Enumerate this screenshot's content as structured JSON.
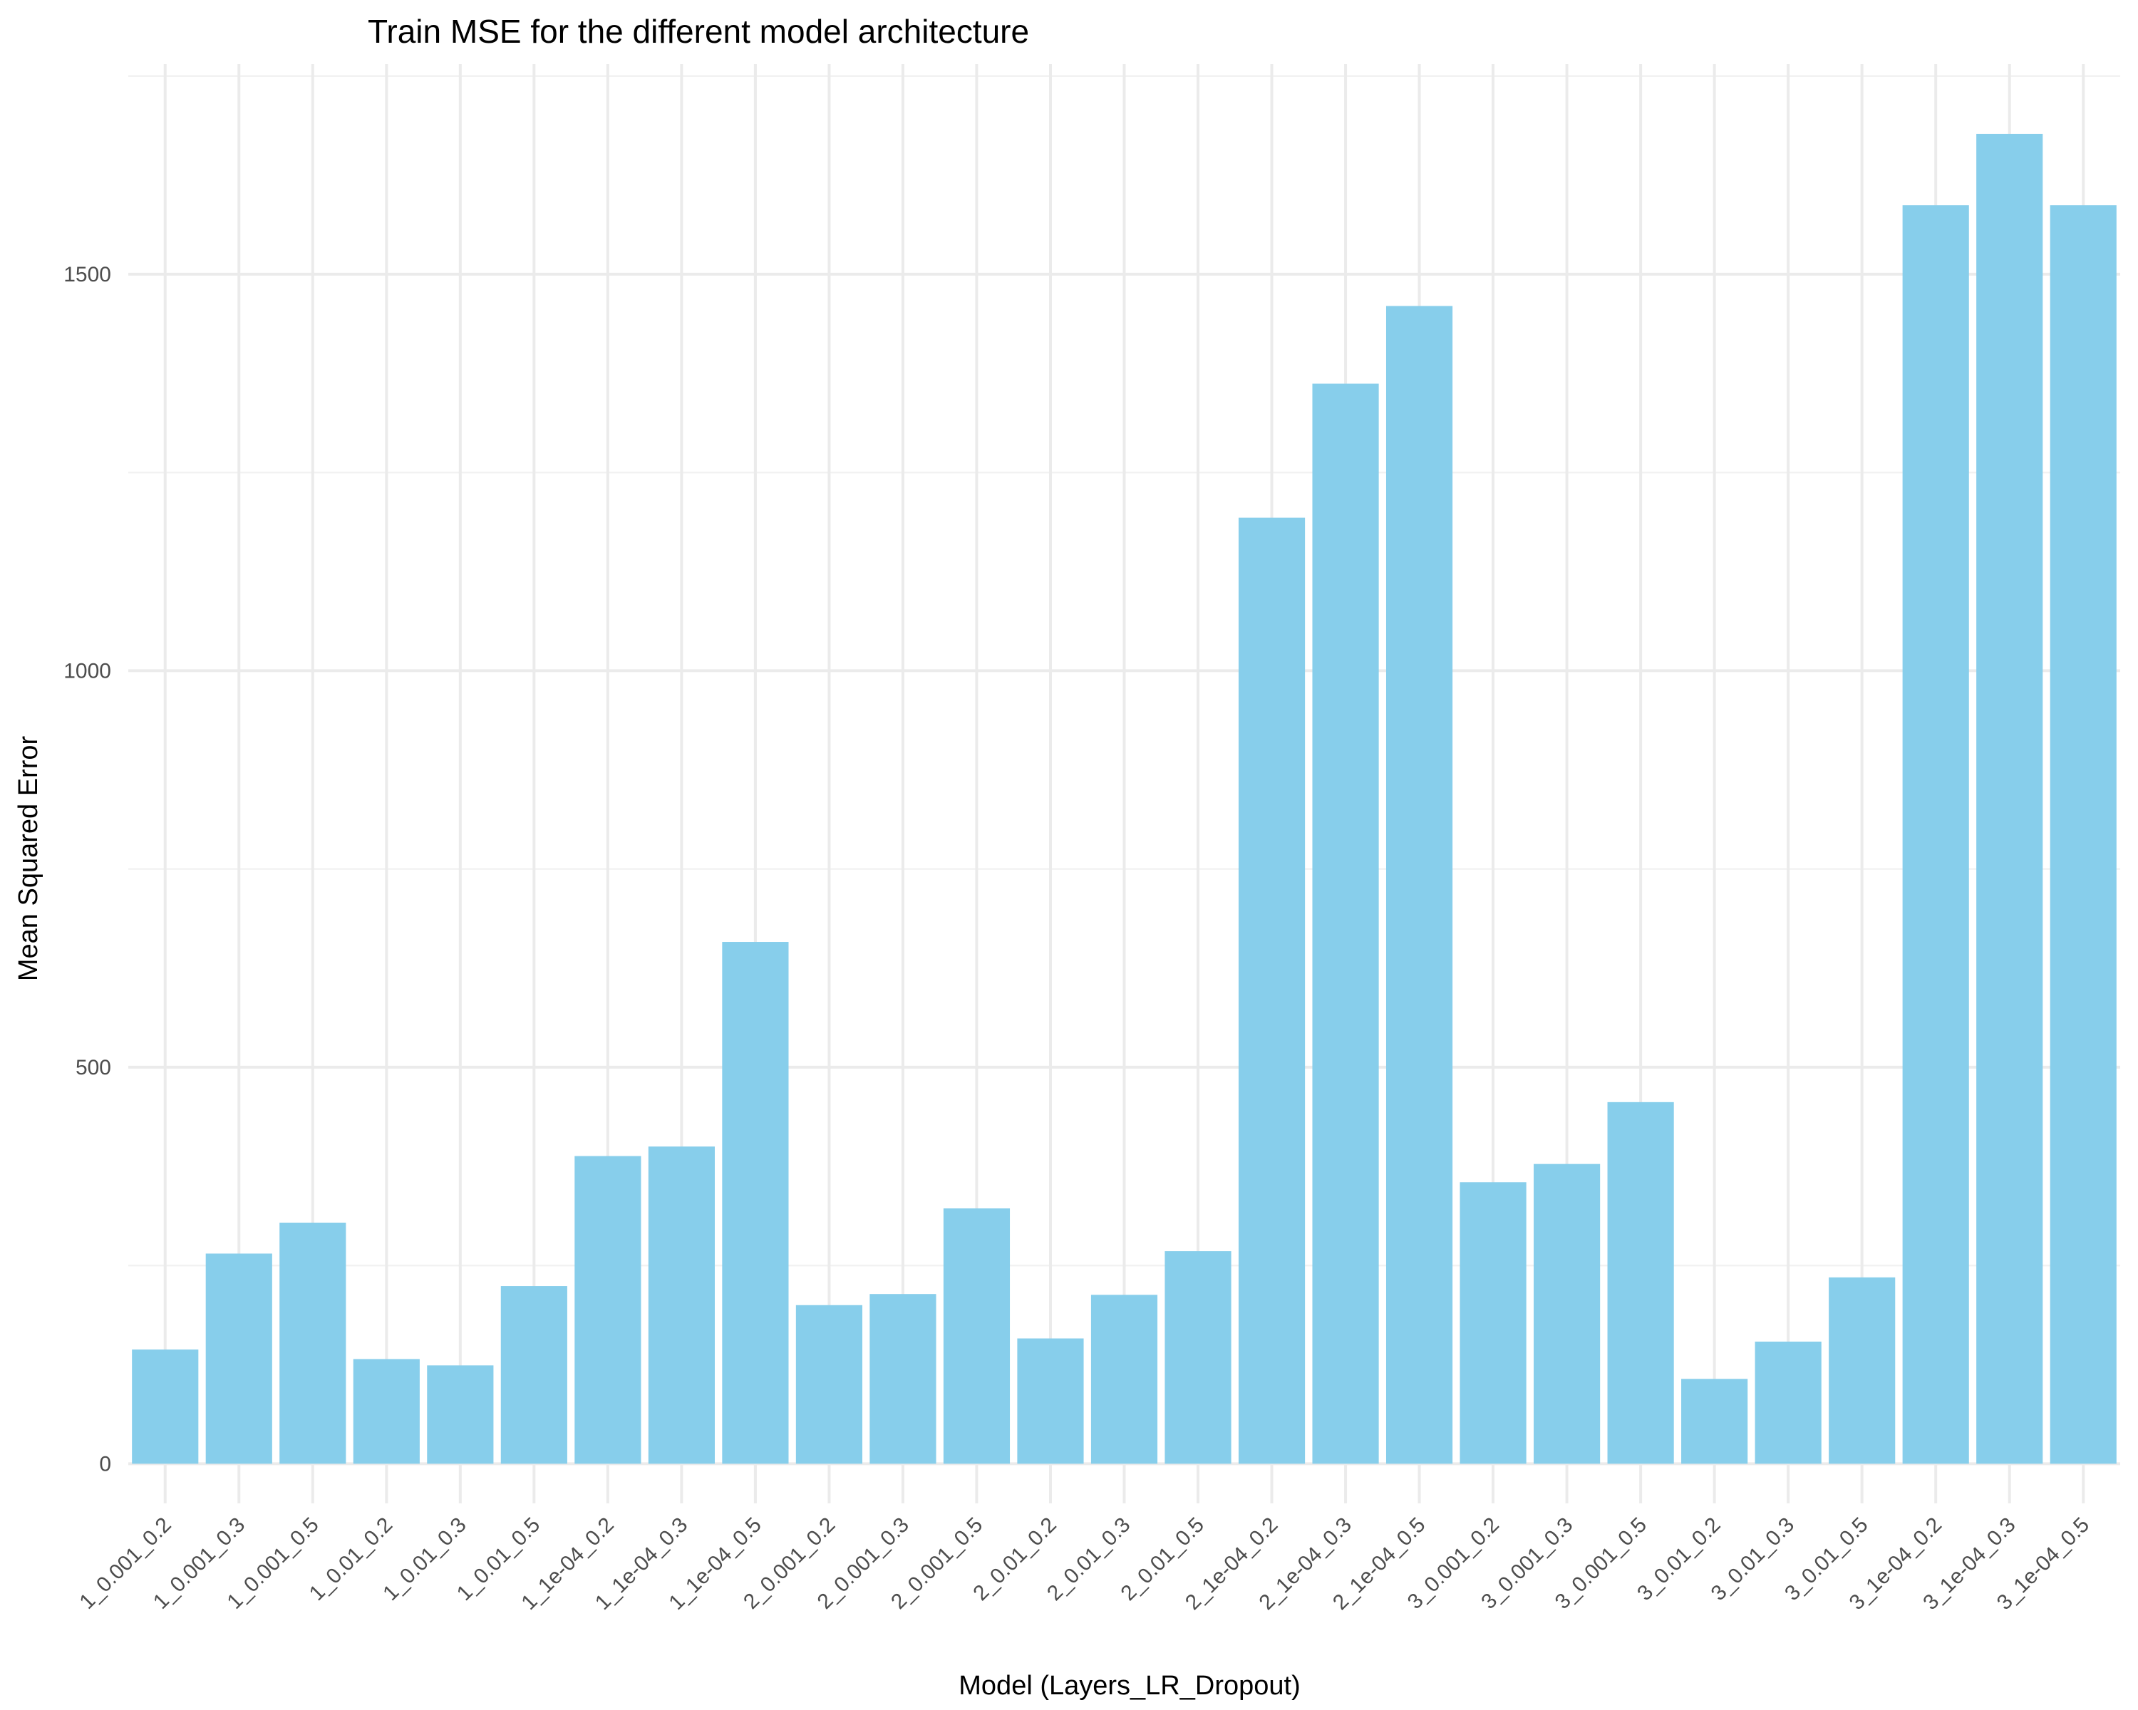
{
  "chart_data": {
    "type": "bar",
    "title": "Train MSE for the different model architecture",
    "xlabel": "Model (Layers_LR_Dropout)",
    "ylabel": "Mean Squared Error",
    "categories": [
      "1_0.001_0.2",
      "1_0.001_0.3",
      "1_0.001_0.5",
      "1_0.01_0.2",
      "1_0.01_0.3",
      "1_0.01_0.5",
      "1_1e-04_0.2",
      "1_1e-04_0.3",
      "1_1e-04_0.5",
      "2_0.001_0.2",
      "2_0.001_0.3",
      "2_0.001_0.5",
      "2_0.01_0.2",
      "2_0.01_0.3",
      "2_0.01_0.5",
      "2_1e-04_0.2",
      "2_1e-04_0.3",
      "2_1e-04_0.5",
      "3_0.001_0.2",
      "3_0.001_0.3",
      "3_0.001_0.5",
      "3_0.01_0.2",
      "3_0.01_0.3",
      "3_0.01_0.5",
      "3_1e-04_0.2",
      "3_1e-04_0.3",
      "3_1e-04_0.5"
    ],
    "values": [
      144,
      265,
      304,
      132,
      124,
      224,
      388,
      400,
      658,
      200,
      214,
      322,
      158,
      213,
      268,
      1193,
      1362,
      1460,
      355,
      378,
      456,
      107,
      154,
      235,
      1587,
      1677,
      1587
    ],
    "ylim": [
      -50,
      1765
    ],
    "yticks": [
      0,
      500,
      1000,
      1500
    ],
    "grid": true,
    "legend": "none",
    "bar_color": "#87CEEB"
  }
}
